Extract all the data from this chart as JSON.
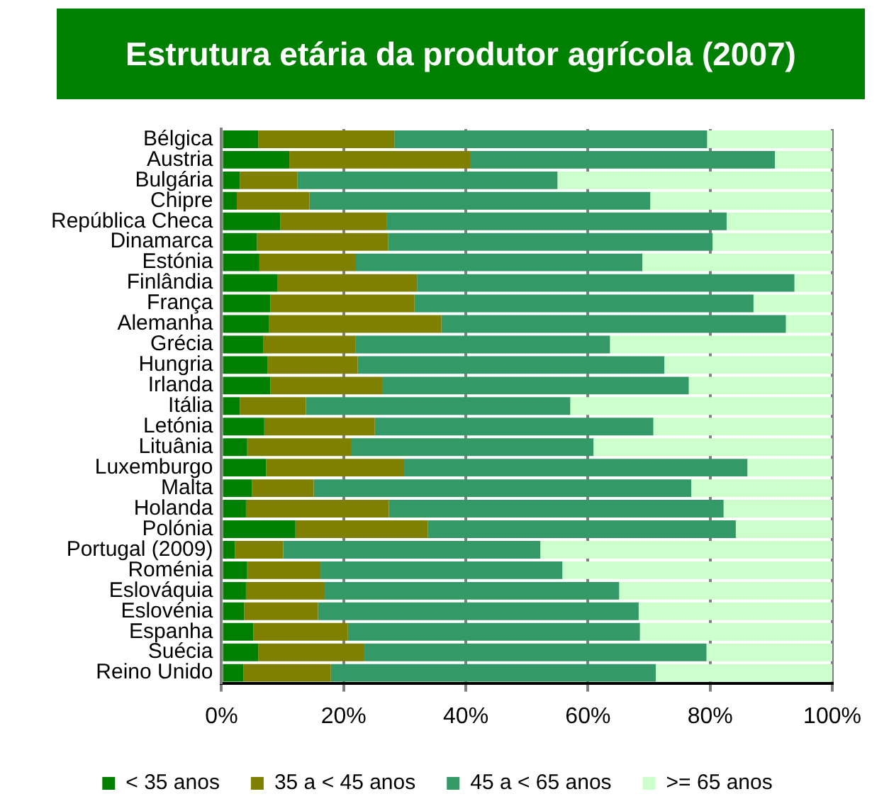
{
  "chart_data": {
    "type": "bar",
    "orientation": "horizontal",
    "stacked": true,
    "title": "Estrutura etária da produtor agrícola (2007)",
    "categories": [
      "Bélgica",
      "Austria",
      "Bulgária",
      "Chipre",
      "República Checa",
      "Dinamarca",
      "Estónia",
      "Finlândia",
      "França",
      "Alemanha",
      "Grécia",
      "Hungria",
      "Irlanda",
      "Itália",
      "Letónia",
      "Lituânia",
      "Luxemburgo",
      "Malta",
      "Holanda",
      "Polónia",
      "Portugal (2009)",
      "Roménia",
      "Eslováquia",
      "Eslovénia",
      "Espanha",
      "Suécia",
      "Reino Unido"
    ],
    "series": [
      {
        "name": "< 35 anos",
        "color": "#008000",
        "values": [
          6.0,
          11.1,
          3.0,
          2.5,
          9.6,
          5.8,
          6.2,
          9.2,
          8.0,
          7.8,
          6.8,
          7.5,
          8.0,
          3.0,
          7.0,
          4.2,
          7.3,
          5.0,
          4.0,
          12.1,
          2.2,
          4.2,
          4.0,
          3.7,
          5.2,
          6.0,
          3.6
        ]
      },
      {
        "name": "35 a < 45 anos",
        "color": "#808000",
        "values": [
          22.3,
          29.7,
          9.4,
          11.9,
          17.4,
          21.5,
          15.8,
          22.8,
          23.6,
          28.2,
          15.1,
          14.8,
          18.3,
          10.8,
          18.1,
          17.1,
          22.6,
          10.1,
          23.4,
          21.7,
          7.9,
          12.0,
          12.9,
          12.1,
          15.5,
          17.4,
          14.3
        ]
      },
      {
        "name": "45 a < 65 anos",
        "color": "#339966",
        "values": [
          51.2,
          49.8,
          42.6,
          55.8,
          55.7,
          53.1,
          46.9,
          61.8,
          55.5,
          56.4,
          41.7,
          50.2,
          50.2,
          43.3,
          45.6,
          39.6,
          56.2,
          61.8,
          54.8,
          50.4,
          42.1,
          39.6,
          48.2,
          52.5,
          47.8,
          56.0,
          53.2
        ]
      },
      {
        "name": ">= 65 anos",
        "color": "#ccffcc",
        "values": [
          20.5,
          9.4,
          45.0,
          29.8,
          17.3,
          19.6,
          31.1,
          6.2,
          12.9,
          7.6,
          36.4,
          27.5,
          23.5,
          42.9,
          29.3,
          39.1,
          13.9,
          23.1,
          17.8,
          15.8,
          47.8,
          44.2,
          34.9,
          31.7,
          31.5,
          20.6,
          28.9
        ]
      }
    ],
    "xlim": [
      0,
      100
    ],
    "xticks": [
      {
        "value": 0,
        "label": "0%"
      },
      {
        "value": 20,
        "label": "20%"
      },
      {
        "value": 40,
        "label": "40%"
      },
      {
        "value": 60,
        "label": "60%"
      },
      {
        "value": 80,
        "label": "80%"
      },
      {
        "value": 100,
        "label": "100%"
      }
    ],
    "grid": "x",
    "legend": "bottom"
  }
}
